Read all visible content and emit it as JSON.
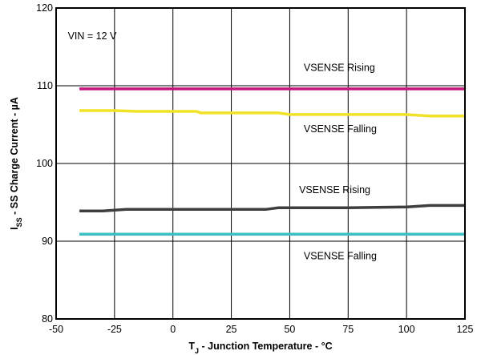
{
  "chart_data": {
    "type": "line",
    "xlabel": {
      "main": "T",
      "sub": "J",
      "rest": " - Junction Temperature - °C"
    },
    "ylabel": {
      "main": "I",
      "sub": "SS",
      "rest": " - SS Charge Current - µA"
    },
    "xlim": [
      -50,
      125
    ],
    "ylim": [
      80,
      120
    ],
    "xticks": [
      -50,
      -25,
      0,
      25,
      50,
      75,
      100,
      125
    ],
    "yticks": [
      80,
      90,
      100,
      110,
      120
    ],
    "grid": true,
    "legend": "none",
    "annotations": [
      {
        "text": "VIN = 12 V",
        "x": -45,
        "y": 116.0
      },
      {
        "text": "VSENSE Rising",
        "x": 56,
        "y": 111.9
      },
      {
        "text": "VSENSE Falling",
        "x": 56,
        "y": 104.0
      },
      {
        "text": "VSENSE Rising",
        "x": 54,
        "y": 96.2
      },
      {
        "text": "VSENSE Falling",
        "x": 56,
        "y": 87.7
      }
    ],
    "series": [
      {
        "color": "#c4157e",
        "x": [
          -40,
          -25,
          0,
          25,
          50,
          75,
          100,
          125
        ],
        "y": [
          109.6,
          109.6,
          109.6,
          109.6,
          109.6,
          109.6,
          109.6,
          109.6
        ]
      },
      {
        "color": "#f2e227",
        "x": [
          -40,
          -25,
          -15,
          0,
          10,
          12,
          25,
          45,
          50,
          75,
          100,
          110,
          125
        ],
        "y": [
          106.8,
          106.8,
          106.7,
          106.7,
          106.7,
          106.5,
          106.5,
          106.5,
          106.3,
          106.3,
          106.3,
          106.1,
          106.1
        ]
      },
      {
        "color": "#3d3f3e",
        "x": [
          -40,
          -30,
          -20,
          0,
          25,
          40,
          45,
          50,
          75,
          100,
          110,
          125
        ],
        "y": [
          93.9,
          93.9,
          94.1,
          94.1,
          94.1,
          94.1,
          94.3,
          94.3,
          94.3,
          94.4,
          94.6,
          94.6
        ]
      },
      {
        "color": "#3bbfc3",
        "x": [
          -40,
          125
        ],
        "y": [
          90.9,
          90.9
        ]
      }
    ]
  }
}
